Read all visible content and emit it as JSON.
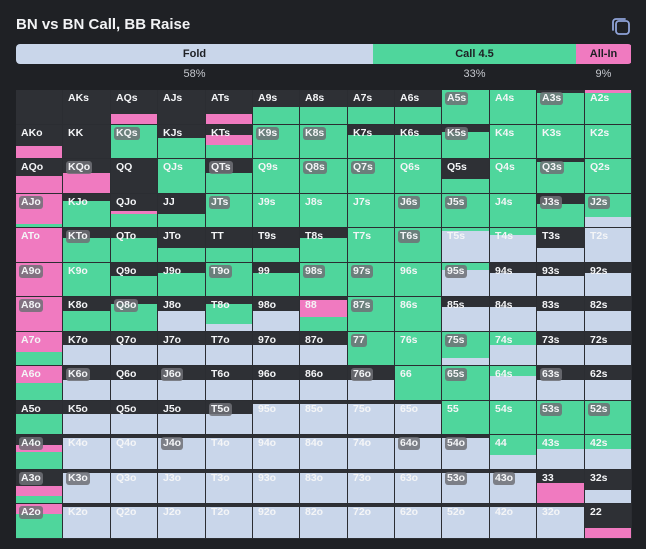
{
  "title": "BN vs BN Call, BB Raise",
  "copy_icon": "copy-icon",
  "colors": {
    "fold": "#c9d6ea",
    "call": "#4fd69c",
    "allin": "#f07ac0",
    "empty": "#2e3035"
  },
  "legend": [
    {
      "key": "fold",
      "label": "Fold",
      "pct": "58%",
      "fraction": 0.58
    },
    {
      "key": "call",
      "label": "Call 4.5",
      "pct": "33%",
      "fraction": 0.33
    },
    {
      "key": "allin",
      "label": "All-In",
      "pct": "9%",
      "fraction": 0.09
    }
  ],
  "ranks": [
    "A",
    "K",
    "Q",
    "J",
    "T",
    "9",
    "8",
    "7",
    "6",
    "5",
    "4",
    "3",
    "2"
  ],
  "cells": [
    [
      {
        "l": "",
        "f": 0,
        "c": 0,
        "a": 0
      },
      {
        "l": "AKs",
        "f": 0,
        "c": 0,
        "a": 0
      },
      {
        "l": "AQs",
        "f": 0,
        "c": 0,
        "a": 0.3
      },
      {
        "l": "AJs",
        "f": 0,
        "c": 0,
        "a": 0
      },
      {
        "l": "ATs",
        "f": 0,
        "c": 0,
        "a": 0.3
      },
      {
        "l": "A9s",
        "f": 0,
        "c": 0.5,
        "a": 0
      },
      {
        "l": "A8s",
        "f": 0,
        "c": 0.5,
        "a": 0
      },
      {
        "l": "A7s",
        "f": 0,
        "c": 0.5,
        "a": 0
      },
      {
        "l": "A6s",
        "f": 0,
        "c": 0.5,
        "a": 0
      },
      {
        "l": "A5s",
        "f": 0,
        "c": 1,
        "a": 0,
        "p": 1
      },
      {
        "l": "A4s",
        "f": 0,
        "c": 1,
        "a": 0
      },
      {
        "l": "A3s",
        "f": 0,
        "c": 0.9,
        "a": 0,
        "p": 1
      },
      {
        "l": "A2s",
        "f": 0,
        "c": 0.9,
        "a": 0.1
      }
    ],
    [
      {
        "l": "AKo",
        "f": 0,
        "c": 0,
        "a": 0.35
      },
      {
        "l": "KK",
        "f": 0,
        "c": 0,
        "a": 0
      },
      {
        "l": "KQs",
        "f": 0,
        "c": 1,
        "a": 0,
        "p": 1
      },
      {
        "l": "KJs",
        "f": 0,
        "c": 0.6,
        "a": 0
      },
      {
        "l": "KTs",
        "f": 0,
        "c": 0.4,
        "a": 0.3
      },
      {
        "l": "K9s",
        "f": 0,
        "c": 1,
        "a": 0,
        "p": 1
      },
      {
        "l": "K8s",
        "f": 0,
        "c": 1,
        "a": 0,
        "p": 1
      },
      {
        "l": "K7s",
        "f": 0,
        "c": 0.7,
        "a": 0
      },
      {
        "l": "K6s",
        "f": 0,
        "c": 0.7,
        "a": 0
      },
      {
        "l": "K5s",
        "f": 0,
        "c": 0.8,
        "a": 0,
        "p": 1
      },
      {
        "l": "K4s",
        "f": 0,
        "c": 1,
        "a": 0
      },
      {
        "l": "K3s",
        "f": 0,
        "c": 1,
        "a": 0
      },
      {
        "l": "K2s",
        "f": 0,
        "c": 1,
        "a": 0
      }
    ],
    [
      {
        "l": "AQo",
        "f": 0,
        "c": 0,
        "a": 0.5
      },
      {
        "l": "KQo",
        "f": 0,
        "c": 0,
        "a": 0.6,
        "p": 1
      },
      {
        "l": "QQ",
        "f": 0,
        "c": 0,
        "a": 0
      },
      {
        "l": "QJs",
        "f": 0,
        "c": 1,
        "a": 0
      },
      {
        "l": "QTs",
        "f": 0,
        "c": 0.6,
        "a": 0,
        "p": 1
      },
      {
        "l": "Q9s",
        "f": 0,
        "c": 1,
        "a": 0
      },
      {
        "l": "Q8s",
        "f": 0,
        "c": 1,
        "a": 0,
        "p": 1
      },
      {
        "l": "Q7s",
        "f": 0,
        "c": 1,
        "a": 0,
        "p": 1
      },
      {
        "l": "Q6s",
        "f": 0,
        "c": 1,
        "a": 0
      },
      {
        "l": "Q5s",
        "f": 0,
        "c": 0.4,
        "a": 0
      },
      {
        "l": "Q4s",
        "f": 0,
        "c": 1,
        "a": 0
      },
      {
        "l": "Q3s",
        "f": 0,
        "c": 0.9,
        "a": 0,
        "p": 1
      },
      {
        "l": "Q2s",
        "f": 0,
        "c": 1,
        "a": 0
      }
    ],
    [
      {
        "l": "AJo",
        "f": 0,
        "c": 0.1,
        "a": 0.9,
        "p": 1
      },
      {
        "l": "KJo",
        "f": 0,
        "c": 0.8,
        "a": 0
      },
      {
        "l": "QJo",
        "f": 0,
        "c": 0.4,
        "a": 0.1
      },
      {
        "l": "JJ",
        "f": 0,
        "c": 0.4,
        "a": 0
      },
      {
        "l": "JTs",
        "f": 0,
        "c": 1,
        "a": 0,
        "p": 1
      },
      {
        "l": "J9s",
        "f": 0,
        "c": 1,
        "a": 0
      },
      {
        "l": "J8s",
        "f": 0,
        "c": 1,
        "a": 0
      },
      {
        "l": "J7s",
        "f": 0,
        "c": 1,
        "a": 0
      },
      {
        "l": "J6s",
        "f": 0,
        "c": 1,
        "a": 0,
        "p": 1
      },
      {
        "l": "J5s",
        "f": 0,
        "c": 1,
        "a": 0,
        "p": 1
      },
      {
        "l": "J4s",
        "f": 0,
        "c": 1,
        "a": 0
      },
      {
        "l": "J3s",
        "f": 0,
        "c": 0.7,
        "a": 0,
        "p": 1
      },
      {
        "l": "J2s",
        "f": 0.3,
        "c": 0.7,
        "a": 0,
        "p": 1
      }
    ],
    [
      {
        "l": "ATo",
        "f": 0,
        "c": 0,
        "a": 1
      },
      {
        "l": "KTo",
        "f": 0,
        "c": 0.7,
        "a": 0,
        "p": 1
      },
      {
        "l": "QTo",
        "f": 0,
        "c": 0.7,
        "a": 0
      },
      {
        "l": "JTo",
        "f": 0,
        "c": 0.4,
        "a": 0
      },
      {
        "l": "TT",
        "f": 0,
        "c": 0.4,
        "a": 0
      },
      {
        "l": "T9s",
        "f": 0,
        "c": 0.4,
        "a": 0
      },
      {
        "l": "T8s",
        "f": 0,
        "c": 0.7,
        "a": 0
      },
      {
        "l": "T7s",
        "f": 0,
        "c": 1,
        "a": 0
      },
      {
        "l": "T6s",
        "f": 0,
        "c": 1,
        "a": 0,
        "p": 1
      },
      {
        "l": "T5s",
        "f": 0.9,
        "c": 0.1,
        "a": 0
      },
      {
        "l": "T4s",
        "f": 0.8,
        "c": 0.2,
        "a": 0
      },
      {
        "l": "T3s",
        "f": 0.4,
        "c": 0,
        "a": 0
      },
      {
        "l": "T2s",
        "f": 1,
        "c": 0,
        "a": 0
      }
    ],
    [
      {
        "l": "A9o",
        "f": 0,
        "c": 0,
        "a": 1,
        "p": 1
      },
      {
        "l": "K9o",
        "f": 0,
        "c": 1,
        "a": 0
      },
      {
        "l": "Q9o",
        "f": 0,
        "c": 0.6,
        "a": 0
      },
      {
        "l": "J9o",
        "f": 0,
        "c": 0.7,
        "a": 0
      },
      {
        "l": "T9o",
        "f": 0,
        "c": 1,
        "a": 0,
        "p": 1
      },
      {
        "l": "99",
        "f": 0,
        "c": 0.7,
        "a": 0
      },
      {
        "l": "98s",
        "f": 0,
        "c": 1,
        "a": 0,
        "p": 1
      },
      {
        "l": "97s",
        "f": 0,
        "c": 1,
        "a": 0,
        "p": 1
      },
      {
        "l": "96s",
        "f": 0,
        "c": 1,
        "a": 0
      },
      {
        "l": "95s",
        "f": 0.8,
        "c": 0.2,
        "a": 0,
        "p": 1
      },
      {
        "l": "94s",
        "f": 0.7,
        "c": 0,
        "a": 0
      },
      {
        "l": "93s",
        "f": 0.6,
        "c": 0,
        "a": 0
      },
      {
        "l": "92s",
        "f": 0.7,
        "c": 0,
        "a": 0
      }
    ],
    [
      {
        "l": "A8o",
        "f": 0,
        "c": 0,
        "a": 1,
        "p": 1
      },
      {
        "l": "K8o",
        "f": 0,
        "c": 0.6,
        "a": 0
      },
      {
        "l": "Q8o",
        "f": 0,
        "c": 0.8,
        "a": 0,
        "p": 1
      },
      {
        "l": "J8o",
        "f": 0.6,
        "c": 0,
        "a": 0
      },
      {
        "l": "T8o",
        "f": 0.2,
        "c": 0.6,
        "a": 0
      },
      {
        "l": "98o",
        "f": 0.6,
        "c": 0,
        "a": 0
      },
      {
        "l": "88",
        "f": 0,
        "c": 0.4,
        "a": 0.5
      },
      {
        "l": "87s",
        "f": 0,
        "c": 1,
        "a": 0,
        "p": 1
      },
      {
        "l": "86s",
        "f": 0,
        "c": 1,
        "a": 0
      },
      {
        "l": "85s",
        "f": 0.7,
        "c": 0,
        "a": 0
      },
      {
        "l": "84s",
        "f": 0.7,
        "c": 0,
        "a": 0
      },
      {
        "l": "83s",
        "f": 0.6,
        "c": 0,
        "a": 0
      },
      {
        "l": "82s",
        "f": 0.6,
        "c": 0,
        "a": 0
      }
    ],
    [
      {
        "l": "A7o",
        "f": 0,
        "c": 0.4,
        "a": 0.6
      },
      {
        "l": "K7o",
        "f": 0.6,
        "c": 0,
        "a": 0
      },
      {
        "l": "Q7o",
        "f": 0.6,
        "c": 0,
        "a": 0
      },
      {
        "l": "J7o",
        "f": 0.6,
        "c": 0,
        "a": 0
      },
      {
        "l": "T7o",
        "f": 0.6,
        "c": 0,
        "a": 0
      },
      {
        "l": "97o",
        "f": 0.6,
        "c": 0,
        "a": 0
      },
      {
        "l": "87o",
        "f": 0.6,
        "c": 0,
        "a": 0
      },
      {
        "l": "77",
        "f": 0,
        "c": 1,
        "a": 0,
        "p": 1
      },
      {
        "l": "76s",
        "f": 0,
        "c": 1,
        "a": 0
      },
      {
        "l": "75s",
        "f": 0.2,
        "c": 0.8,
        "a": 0,
        "p": 1
      },
      {
        "l": "74s",
        "f": 0.6,
        "c": 0.4,
        "a": 0
      },
      {
        "l": "73s",
        "f": 0.6,
        "c": 0,
        "a": 0
      },
      {
        "l": "72s",
        "f": 0.6,
        "c": 0,
        "a": 0
      }
    ],
    [
      {
        "l": "A6o",
        "f": 0,
        "c": 0.5,
        "a": 0.5
      },
      {
        "l": "K6o",
        "f": 0.6,
        "c": 0,
        "a": 0,
        "p": 1
      },
      {
        "l": "Q6o",
        "f": 0.6,
        "c": 0,
        "a": 0
      },
      {
        "l": "J6o",
        "f": 0.6,
        "c": 0,
        "a": 0,
        "p": 1
      },
      {
        "l": "T6o",
        "f": 0.6,
        "c": 0,
        "a": 0
      },
      {
        "l": "96o",
        "f": 0.6,
        "c": 0,
        "a": 0
      },
      {
        "l": "86o",
        "f": 0.6,
        "c": 0,
        "a": 0
      },
      {
        "l": "76o",
        "f": 0.6,
        "c": 0,
        "a": 0,
        "p": 1
      },
      {
        "l": "66",
        "f": 0,
        "c": 1,
        "a": 0
      },
      {
        "l": "65s",
        "f": 0,
        "c": 1,
        "a": 0,
        "p": 1
      },
      {
        "l": "64s",
        "f": 0.7,
        "c": 0.3,
        "a": 0
      },
      {
        "l": "63s",
        "f": 0.6,
        "c": 0,
        "a": 0,
        "p": 1
      },
      {
        "l": "62s",
        "f": 0.6,
        "c": 0,
        "a": 0
      }
    ],
    [
      {
        "l": "A5o",
        "f": 0,
        "c": 0.6,
        "a": 0
      },
      {
        "l": "K5o",
        "f": 0.6,
        "c": 0,
        "a": 0
      },
      {
        "l": "Q5o",
        "f": 0.6,
        "c": 0,
        "a": 0
      },
      {
        "l": "J5o",
        "f": 0.6,
        "c": 0,
        "a": 0
      },
      {
        "l": "T5o",
        "f": 0.6,
        "c": 0,
        "a": 0,
        "p": 1
      },
      {
        "l": "95o",
        "f": 0.9,
        "c": 0,
        "a": 0
      },
      {
        "l": "85o",
        "f": 0.9,
        "c": 0,
        "a": 0
      },
      {
        "l": "75o",
        "f": 0.9,
        "c": 0,
        "a": 0
      },
      {
        "l": "65o",
        "f": 0.9,
        "c": 0,
        "a": 0
      },
      {
        "l": "55",
        "f": 0,
        "c": 1,
        "a": 0
      },
      {
        "l": "54s",
        "f": 0,
        "c": 1,
        "a": 0
      },
      {
        "l": "53s",
        "f": 0,
        "c": 1,
        "a": 0,
        "p": 1
      },
      {
        "l": "52s",
        "f": 0,
        "c": 1,
        "a": 0,
        "p": 1
      }
    ],
    [
      {
        "l": "A4o",
        "f": 0,
        "c": 0.5,
        "a": 0.2,
        "p": 1
      },
      {
        "l": "K4o",
        "f": 0.9,
        "c": 0,
        "a": 0
      },
      {
        "l": "Q4o",
        "f": 0.9,
        "c": 0,
        "a": 0
      },
      {
        "l": "J4o",
        "f": 0.9,
        "c": 0,
        "a": 0,
        "p": 1
      },
      {
        "l": "T4o",
        "f": 0.9,
        "c": 0,
        "a": 0
      },
      {
        "l": "94o",
        "f": 0.9,
        "c": 0,
        "a": 0
      },
      {
        "l": "84o",
        "f": 0.9,
        "c": 0,
        "a": 0
      },
      {
        "l": "74o",
        "f": 0.9,
        "c": 0,
        "a": 0
      },
      {
        "l": "64o",
        "f": 0.9,
        "c": 0,
        "a": 0,
        "p": 1
      },
      {
        "l": "54o",
        "f": 0.9,
        "c": 0,
        "a": 0,
        "p": 1
      },
      {
        "l": "44",
        "f": 0.4,
        "c": 0.6,
        "a": 0
      },
      {
        "l": "43s",
        "f": 0.6,
        "c": 0.4,
        "a": 0
      },
      {
        "l": "42s",
        "f": 0.6,
        "c": 0.4,
        "a": 0
      }
    ],
    [
      {
        "l": "A3o",
        "f": 0,
        "c": 0.2,
        "a": 0.3,
        "p": 1
      },
      {
        "l": "K3o",
        "f": 0.9,
        "c": 0,
        "a": 0,
        "p": 1
      },
      {
        "l": "Q3o",
        "f": 0.9,
        "c": 0,
        "a": 0
      },
      {
        "l": "J3o",
        "f": 0.9,
        "c": 0,
        "a": 0
      },
      {
        "l": "T3o",
        "f": 0.9,
        "c": 0,
        "a": 0
      },
      {
        "l": "93o",
        "f": 0.9,
        "c": 0,
        "a": 0
      },
      {
        "l": "83o",
        "f": 0.9,
        "c": 0,
        "a": 0
      },
      {
        "l": "73o",
        "f": 0.9,
        "c": 0,
        "a": 0
      },
      {
        "l": "63o",
        "f": 0.9,
        "c": 0,
        "a": 0
      },
      {
        "l": "53o",
        "f": 0.9,
        "c": 0,
        "a": 0,
        "p": 1
      },
      {
        "l": "43o",
        "f": 0.9,
        "c": 0,
        "a": 0,
        "p": 1
      },
      {
        "l": "33",
        "f": 0,
        "c": 0,
        "a": 0.6
      },
      {
        "l": "32s",
        "f": 0.4,
        "c": 0,
        "a": 0
      }
    ],
    [
      {
        "l": "A2o",
        "f": 0,
        "c": 0.7,
        "a": 0.3,
        "p": 1
      },
      {
        "l": "K2o",
        "f": 0.9,
        "c": 0,
        "a": 0
      },
      {
        "l": "Q2o",
        "f": 0.9,
        "c": 0,
        "a": 0
      },
      {
        "l": "J2o",
        "f": 0.9,
        "c": 0,
        "a": 0
      },
      {
        "l": "T2o",
        "f": 0.9,
        "c": 0,
        "a": 0
      },
      {
        "l": "92o",
        "f": 0.9,
        "c": 0,
        "a": 0
      },
      {
        "l": "82o",
        "f": 0.9,
        "c": 0,
        "a": 0
      },
      {
        "l": "72o",
        "f": 0.9,
        "c": 0,
        "a": 0
      },
      {
        "l": "62o",
        "f": 0.9,
        "c": 0,
        "a": 0
      },
      {
        "l": "52o",
        "f": 0.9,
        "c": 0,
        "a": 0
      },
      {
        "l": "42o",
        "f": 0.9,
        "c": 0,
        "a": 0
      },
      {
        "l": "32o",
        "f": 0.9,
        "c": 0,
        "a": 0
      },
      {
        "l": "22",
        "f": 0,
        "c": 0,
        "a": 0.3
      }
    ]
  ]
}
